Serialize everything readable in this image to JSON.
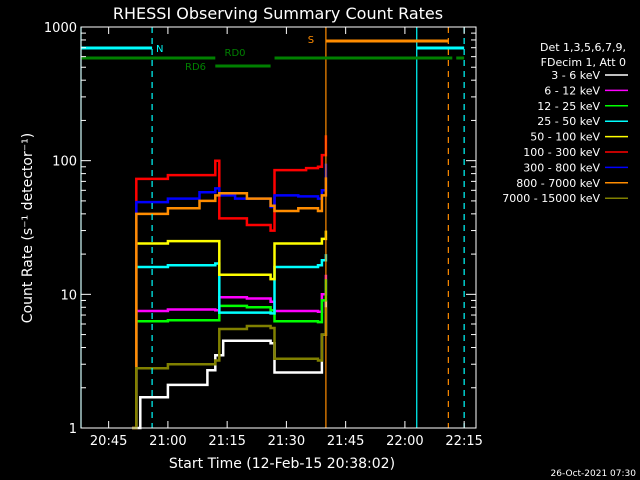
{
  "chart_data": {
    "type": "line",
    "title": "RHESSI Observing Summary Count Rates",
    "xlabel": "Start Time (12-Feb-15 20:38:02)",
    "ylabel": "Count Rate (s⁻¹ detector⁻¹)",
    "xlim": [
      "20:38",
      "22:18"
    ],
    "ylim": [
      1,
      1000
    ],
    "yscale": "log",
    "x_ticks": [
      "20:45",
      "21:00",
      "21:15",
      "21:30",
      "21:45",
      "22:00",
      "22:15"
    ],
    "y_ticks": [
      {
        "value": 1,
        "label": "1"
      },
      {
        "value": 10,
        "label": "10"
      },
      {
        "value": 100,
        "label": "100"
      },
      {
        "value": 1000,
        "label": "1000"
      }
    ],
    "legend_position": "right",
    "legend_header": [
      "Det 1,3,5,6,7,9,",
      "FDecim 1, Att 0"
    ],
    "series": [
      {
        "name": "3 - 6 keV",
        "color": "#ffffff",
        "x": [
          "20:51",
          "20:53",
          "21:00",
          "21:10",
          "21:12",
          "21:14",
          "21:20",
          "21:26",
          "21:27",
          "21:35",
          "21:38",
          "21:39",
          "21:40"
        ],
        "y": [
          1,
          1.7,
          2.1,
          2.7,
          3.5,
          4.5,
          4.5,
          4.3,
          2.6,
          2.6,
          2.6,
          5,
          9
        ]
      },
      {
        "name": "6 - 12 keV",
        "color": "#ff00ff",
        "x": [
          "20:51",
          "20:52",
          "21:00",
          "21:12",
          "21:13",
          "21:20",
          "21:26",
          "21:27",
          "21:38",
          "21:39",
          "21:40"
        ],
        "y": [
          1,
          7.5,
          7.7,
          7.6,
          9.5,
          9.3,
          8.8,
          7.5,
          7.4,
          10,
          14
        ]
      },
      {
        "name": "12 - 25 keV",
        "color": "#00ff00",
        "x": [
          "20:51",
          "20:52",
          "21:00",
          "21:12",
          "21:13",
          "21:20",
          "21:26",
          "21:27",
          "21:38",
          "21:39",
          "21:40"
        ],
        "y": [
          1,
          6.3,
          6.4,
          6.4,
          8.2,
          8.0,
          7.6,
          6.3,
          6.2,
          9,
          13
        ]
      },
      {
        "name": "25 - 50 keV",
        "color": "#00ffff",
        "x": [
          "20:51",
          "20:52",
          "21:00",
          "21:12",
          "21:13",
          "21:20",
          "21:26",
          "21:27",
          "21:38",
          "21:39",
          "21:40"
        ],
        "y": [
          1,
          16,
          16.5,
          17,
          7.3,
          7.3,
          7.2,
          16,
          16.5,
          18,
          20
        ]
      },
      {
        "name": "50 - 100 keV",
        "color": "#ffff00",
        "x": [
          "20:51",
          "20:52",
          "21:00",
          "21:12",
          "21:13",
          "21:20",
          "21:26",
          "21:27",
          "21:38",
          "21:39",
          "21:40"
        ],
        "y": [
          1,
          24,
          25,
          25,
          14,
          14,
          13,
          24,
          24,
          26,
          30
        ]
      },
      {
        "name": "100 - 300 keV",
        "color": "#ff0000",
        "x": [
          "20:51",
          "20:52",
          "21:00",
          "21:12",
          "21:13",
          "21:20",
          "21:26",
          "21:27",
          "21:35",
          "21:38",
          "21:39",
          "21:40"
        ],
        "y": [
          1,
          73,
          78,
          100,
          37,
          33,
          30,
          85,
          88,
          90,
          110,
          155
        ]
      },
      {
        "name": "300 - 800 keV",
        "color": "#0000ff",
        "x": [
          "20:51",
          "20:52",
          "21:00",
          "21:08",
          "21:12",
          "21:13",
          "21:17",
          "21:26",
          "21:27",
          "21:33",
          "21:38",
          "21:39",
          "21:40"
        ],
        "y": [
          1,
          49,
          52,
          58,
          62,
          55,
          52,
          45,
          55,
          54,
          52,
          60,
          95
        ]
      },
      {
        "name": "800 - 7000 keV",
        "color": "#ff8c00",
        "x": [
          "20:51",
          "20:52",
          "21:00",
          "21:08",
          "21:12",
          "21:13",
          "21:17",
          "21:20",
          "21:26",
          "21:27",
          "21:33",
          "21:38",
          "21:39",
          "21:40"
        ],
        "y": [
          1,
          40,
          44,
          50,
          55,
          57,
          57,
          52,
          46,
          42,
          44,
          42,
          55,
          75
        ]
      },
      {
        "name": "7000 - 15000 keV",
        "color": "#808000",
        "x": [
          "20:51",
          "20:52",
          "21:00",
          "21:12",
          "21:13",
          "21:20",
          "21:26",
          "21:27",
          "21:38",
          "21:39",
          "21:40"
        ],
        "y": [
          1,
          2.8,
          3.0,
          3.2,
          5.5,
          5.8,
          5.6,
          3.3,
          3.2,
          5,
          8
        ]
      }
    ],
    "bars": [
      {
        "label": "N",
        "color": "#00ffff",
        "segments": [
          [
            "20:38",
            "20:56"
          ],
          [
            "22:03",
            "22:15"
          ]
        ]
      },
      {
        "label": "S",
        "color": "#ff8c00",
        "segments": [
          [
            "21:40",
            "22:11"
          ]
        ]
      },
      {
        "label": "RD0",
        "color": "#008000",
        "segments": [
          [
            "20:38",
            "21:12"
          ],
          [
            "21:27",
            "22:12"
          ],
          [
            "22:13",
            "22:15"
          ]
        ]
      },
      {
        "label": "RD6",
        "color": "#008000",
        "segments": [
          [
            "21:12",
            "21:26"
          ]
        ]
      }
    ],
    "vertical_lines": [
      {
        "x": "20:38",
        "color": "#00ffff",
        "style": "solid"
      },
      {
        "x": "20:56",
        "color": "#00ffff",
        "style": "dashed"
      },
      {
        "x": "21:40",
        "color": "#ff8c00",
        "style": "solid"
      },
      {
        "x": "22:03",
        "color": "#00ffff",
        "style": "solid"
      },
      {
        "x": "22:11",
        "color": "#ff8c00",
        "style": "dashed"
      },
      {
        "x": "22:15",
        "color": "#00ffff",
        "style": "dashed"
      }
    ]
  },
  "footer_timestamp": "26-Oct-2021 07:30"
}
